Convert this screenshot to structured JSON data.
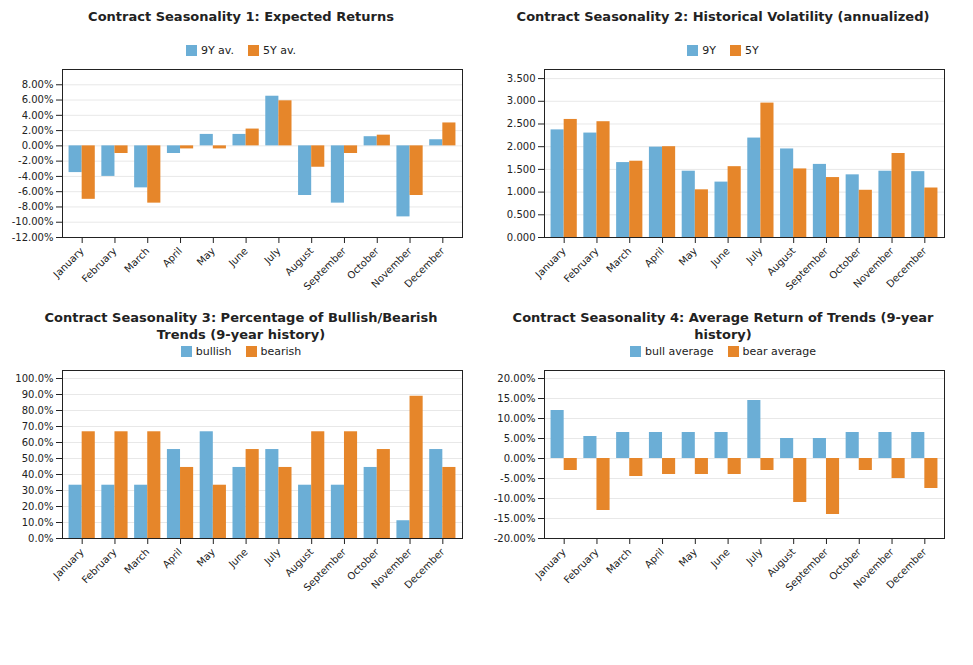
{
  "chart_data": [
    {
      "type": "bar",
      "title": "Contract Seasonality 1: Expected Returns",
      "categories": [
        "January",
        "February",
        "March",
        "April",
        "May",
        "June",
        "July",
        "August",
        "September",
        "October",
        "November",
        "December"
      ],
      "series": [
        {
          "name": "9Y av.",
          "color": "#6baed6",
          "values": [
            -0.035,
            -0.04,
            -0.055,
            -0.01,
            0.015,
            0.015,
            0.065,
            -0.065,
            -0.075,
            0.012,
            -0.093,
            0.008
          ]
        },
        {
          "name": "5Y av.",
          "color": "#e6862a",
          "values": [
            -0.07,
            -0.01,
            -0.075,
            -0.004,
            -0.004,
            0.022,
            0.059,
            -0.028,
            -0.01,
            0.014,
            -0.065,
            0.03
          ]
        }
      ],
      "ylim": [
        -0.12,
        0.1
      ],
      "yticks": [
        {
          "value": -0.12,
          "label": "-12.00%"
        },
        {
          "value": -0.1,
          "label": "-10.00%"
        },
        {
          "value": -0.08,
          "label": "-8.00%"
        },
        {
          "value": -0.06,
          "label": "-6.00%"
        },
        {
          "value": -0.04,
          "label": "-4.00%"
        },
        {
          "value": -0.02,
          "label": "-2.00%"
        },
        {
          "value": 0.0,
          "label": "0.00%"
        },
        {
          "value": 0.02,
          "label": "2.00%"
        },
        {
          "value": 0.04,
          "label": "4.00%"
        },
        {
          "value": 0.06,
          "label": "6.00%"
        },
        {
          "value": 0.08,
          "label": "8.00%"
        }
      ],
      "grid": true,
      "legend": "top"
    },
    {
      "type": "bar",
      "title": "Contract Seasonality 2: Historical Volatility (annualized)",
      "categories": [
        "January",
        "February",
        "March",
        "April",
        "May",
        "June",
        "July",
        "August",
        "September",
        "October",
        "November",
        "December"
      ],
      "series": [
        {
          "name": "9Y",
          "color": "#6baed6",
          "values": [
            2.37,
            2.3,
            1.65,
            1.99,
            1.46,
            1.22,
            2.19,
            1.95,
            1.61,
            1.38,
            1.46,
            1.45
          ]
        },
        {
          "name": "5Y",
          "color": "#e6862a",
          "values": [
            2.6,
            2.55,
            1.68,
            2.0,
            1.05,
            1.56,
            2.96,
            1.51,
            1.32,
            1.04,
            1.85,
            1.09
          ]
        }
      ],
      "ylim": [
        0,
        3.7
      ],
      "yticks": [
        {
          "value": 0.0,
          "label": "0.000"
        },
        {
          "value": 0.5,
          "label": "0.500"
        },
        {
          "value": 1.0,
          "label": "1.000"
        },
        {
          "value": 1.5,
          "label": "1.500"
        },
        {
          "value": 2.0,
          "label": "2.000"
        },
        {
          "value": 2.5,
          "label": "2.500"
        },
        {
          "value": 3.0,
          "label": "3.000"
        },
        {
          "value": 3.5,
          "label": "3.500"
        }
      ],
      "grid": true,
      "legend": "top"
    },
    {
      "type": "bar",
      "title": "Contract Seasonality 3: Percentage of Bullish/Bearish\nTrends (9-year history)",
      "categories": [
        "January",
        "February",
        "March",
        "April",
        "May",
        "June",
        "July",
        "August",
        "September",
        "October",
        "November",
        "December"
      ],
      "series": [
        {
          "name": "bullish",
          "color": "#6baed6",
          "values": [
            0.333,
            0.333,
            0.333,
            0.556,
            0.667,
            0.444,
            0.556,
            0.333,
            0.333,
            0.444,
            0.111,
            0.556
          ]
        },
        {
          "name": "bearish",
          "color": "#e6862a",
          "values": [
            0.667,
            0.667,
            0.667,
            0.444,
            0.333,
            0.556,
            0.444,
            0.667,
            0.667,
            0.556,
            0.889,
            0.444
          ]
        }
      ],
      "ylim": [
        0,
        1.05
      ],
      "yticks": [
        {
          "value": 0.0,
          "label": "0.0%"
        },
        {
          "value": 0.1,
          "label": "10.0%"
        },
        {
          "value": 0.2,
          "label": "20.0%"
        },
        {
          "value": 0.3,
          "label": "30.0%"
        },
        {
          "value": 0.4,
          "label": "40.0%"
        },
        {
          "value": 0.5,
          "label": "50.0%"
        },
        {
          "value": 0.6,
          "label": "60.0%"
        },
        {
          "value": 0.7,
          "label": "70.0%"
        },
        {
          "value": 0.8,
          "label": "80.0%"
        },
        {
          "value": 0.9,
          "label": "90.0%"
        },
        {
          "value": 1.0,
          "label": "100.0%"
        }
      ],
      "grid": true,
      "legend": "top"
    },
    {
      "type": "bar",
      "title": "Contract Seasonality 4: Average Return of Trends (9-year\nhistory)",
      "categories": [
        "January",
        "February",
        "March",
        "April",
        "May",
        "June",
        "July",
        "August",
        "September",
        "October",
        "November",
        "December"
      ],
      "series": [
        {
          "name": "bull average",
          "color": "#6baed6",
          "values": [
            0.12,
            0.055,
            0.065,
            0.065,
            0.065,
            0.065,
            0.145,
            0.05,
            0.05,
            0.065,
            0.065,
            0.065
          ]
        },
        {
          "name": "bear average",
          "color": "#e6862a",
          "values": [
            -0.03,
            -0.13,
            -0.045,
            -0.04,
            -0.04,
            -0.04,
            -0.03,
            -0.11,
            -0.14,
            -0.03,
            -0.05,
            -0.075
          ]
        }
      ],
      "ylim": [
        -0.2,
        0.22
      ],
      "yticks": [
        {
          "value": -0.2,
          "label": "-20.00%"
        },
        {
          "value": -0.15,
          "label": "-15.00%"
        },
        {
          "value": -0.1,
          "label": "-10.00%"
        },
        {
          "value": -0.05,
          "label": "-5.00%"
        },
        {
          "value": 0.0,
          "label": "0.00%"
        },
        {
          "value": 0.05,
          "label": "5.00%"
        },
        {
          "value": 0.1,
          "label": "10.00%"
        },
        {
          "value": 0.15,
          "label": "15.00%"
        },
        {
          "value": 0.2,
          "label": "20.00%"
        }
      ],
      "grid": true,
      "legend": "top"
    }
  ]
}
